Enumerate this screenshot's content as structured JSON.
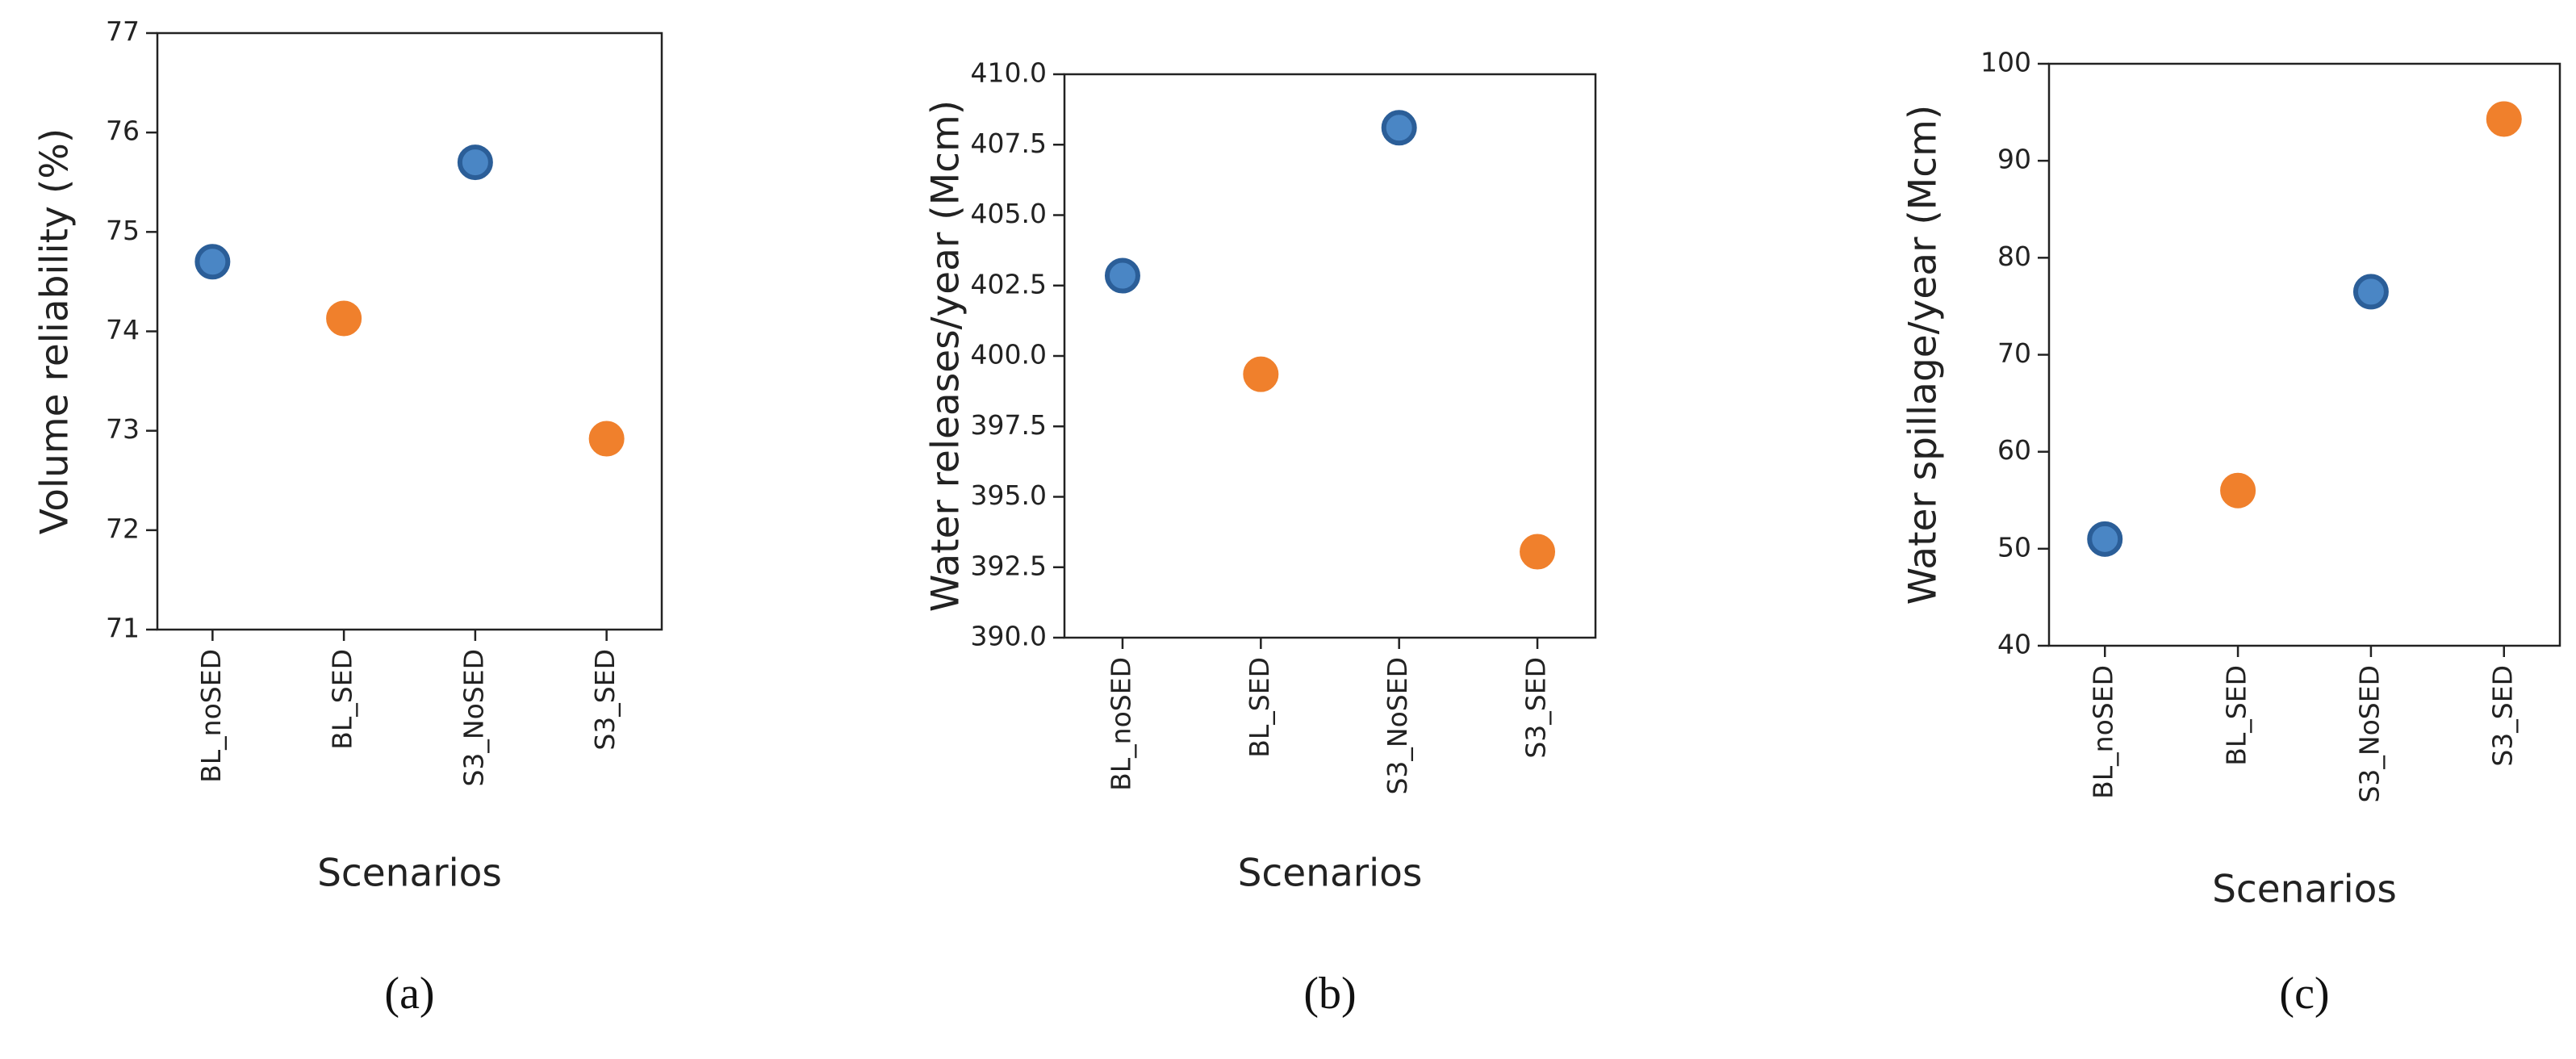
{
  "chart_data": [
    {
      "type": "scatter",
      "ylabel": "Volume reliability (%)",
      "xlabel": "Scenarios",
      "caption": "(a)",
      "categories": [
        "BL_noSED",
        "BL_SED",
        "S3_NoSED",
        "S3_SED"
      ],
      "values": [
        74.7,
        74.13,
        75.7,
        72.92
      ],
      "colors": [
        "#4a86c5",
        "#f0802c",
        "#4a86c5",
        "#f0802c"
      ],
      "edgecolors": [
        "#2b5e98",
        "#f0802c",
        "#2b5e98",
        "#f0802c"
      ],
      "ylim": [
        71,
        77
      ],
      "yticks": [
        71,
        72,
        73,
        74,
        75,
        76,
        77
      ]
    },
    {
      "type": "scatter",
      "ylabel": "Water releases/year (Mcm)",
      "xlabel": "Scenarios",
      "caption": "(b)",
      "categories": [
        "BL_noSED",
        "BL_SED",
        "S3_NoSED",
        "S3_SED"
      ],
      "values": [
        402.85,
        399.35,
        408.1,
        393.05
      ],
      "colors": [
        "#4a86c5",
        "#f0802c",
        "#4a86c5",
        "#f0802c"
      ],
      "edgecolors": [
        "#2b5e98",
        "#f0802c",
        "#2b5e98",
        "#f0802c"
      ],
      "ylim": [
        390,
        410
      ],
      "yticks": [
        {
          "value": 390,
          "label": "390.0"
        },
        392.5,
        {
          "value": 395,
          "label": "395.0"
        },
        397.5,
        {
          "value": 400,
          "label": "400.0"
        },
        402.5,
        {
          "value": 405,
          "label": "405.0"
        },
        407.5,
        {
          "value": 410,
          "label": "410.0"
        }
      ]
    },
    {
      "type": "scatter",
      "ylabel": "Water spillage/year (Mcm)",
      "xlabel": "Scenarios",
      "caption": "(c)",
      "categories": [
        "BL_noSED",
        "BL_SED",
        "S3_NoSED",
        "S3_SED"
      ],
      "values": [
        51,
        56,
        76.5,
        94.3
      ],
      "colors": [
        "#4a86c5",
        "#f0802c",
        "#4a86c5",
        "#f0802c"
      ],
      "edgecolors": [
        "#2b5e98",
        "#f0802c",
        "#2b5e98",
        "#f0802c"
      ],
      "ylim": [
        40,
        100
      ],
      "yticks": [
        40,
        50,
        60,
        70,
        80,
        90,
        100
      ]
    }
  ]
}
